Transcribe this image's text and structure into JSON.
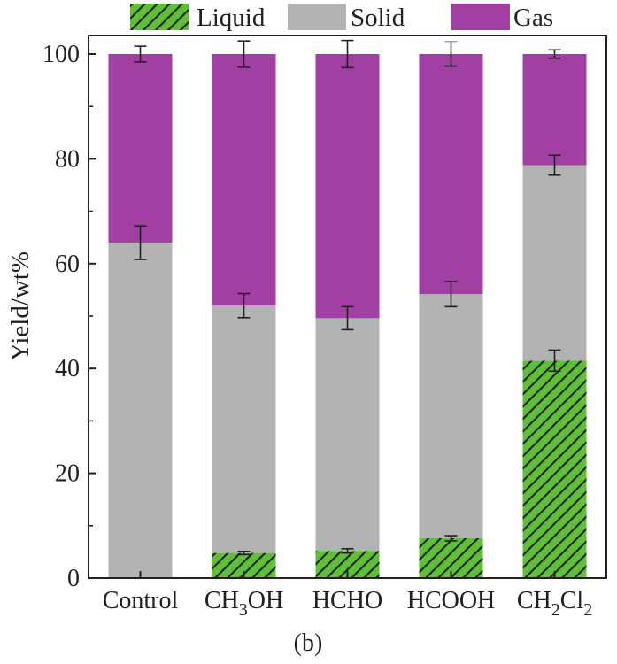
{
  "chart_data": {
    "type": "bar",
    "stacked": true,
    "categories": [
      "Control",
      "CH3OH",
      "HCHO",
      "HCOOH",
      "CH2Cl2"
    ],
    "category_display": [
      {
        "parts": [
          {
            "t": "Control",
            "sub": false
          }
        ]
      },
      {
        "parts": [
          {
            "t": "CH",
            "sub": false
          },
          {
            "t": "3",
            "sub": true
          },
          {
            "t": "OH",
            "sub": false
          }
        ]
      },
      {
        "parts": [
          {
            "t": "HCHO",
            "sub": false
          }
        ]
      },
      {
        "parts": [
          {
            "t": "HCOOH",
            "sub": false
          }
        ]
      },
      {
        "parts": [
          {
            "t": "CH",
            "sub": false
          },
          {
            "t": "2",
            "sub": true
          },
          {
            "t": "Cl",
            "sub": false
          },
          {
            "t": "2",
            "sub": true
          }
        ]
      }
    ],
    "series": [
      {
        "name": "Liquid",
        "color": "#5dc135",
        "pattern": "hatch",
        "values": [
          0,
          4.8,
          5.2,
          7.6,
          41.5
        ],
        "error": [
          0,
          0.3,
          0.4,
          0.5,
          2.0
        ]
      },
      {
        "name": "Solid",
        "color": "#b3b3b6",
        "values": [
          64.0,
          47.2,
          44.4,
          46.6,
          37.3
        ],
        "error": [
          3.2,
          2.3,
          2.2,
          2.4,
          1.9
        ]
      },
      {
        "name": "Gas",
        "color": "#a13fa2",
        "values": [
          36.0,
          48.0,
          50.4,
          45.8,
          21.2
        ],
        "error": [
          1.5,
          2.5,
          2.6,
          2.3,
          0.8
        ]
      }
    ],
    "ylabel": "Yield/wt%",
    "ylim": [
      0,
      100
    ],
    "yticks": [
      0,
      20,
      40,
      60,
      80,
      100
    ],
    "legend_position": "top",
    "grid": false
  },
  "panel_label": "(b)"
}
